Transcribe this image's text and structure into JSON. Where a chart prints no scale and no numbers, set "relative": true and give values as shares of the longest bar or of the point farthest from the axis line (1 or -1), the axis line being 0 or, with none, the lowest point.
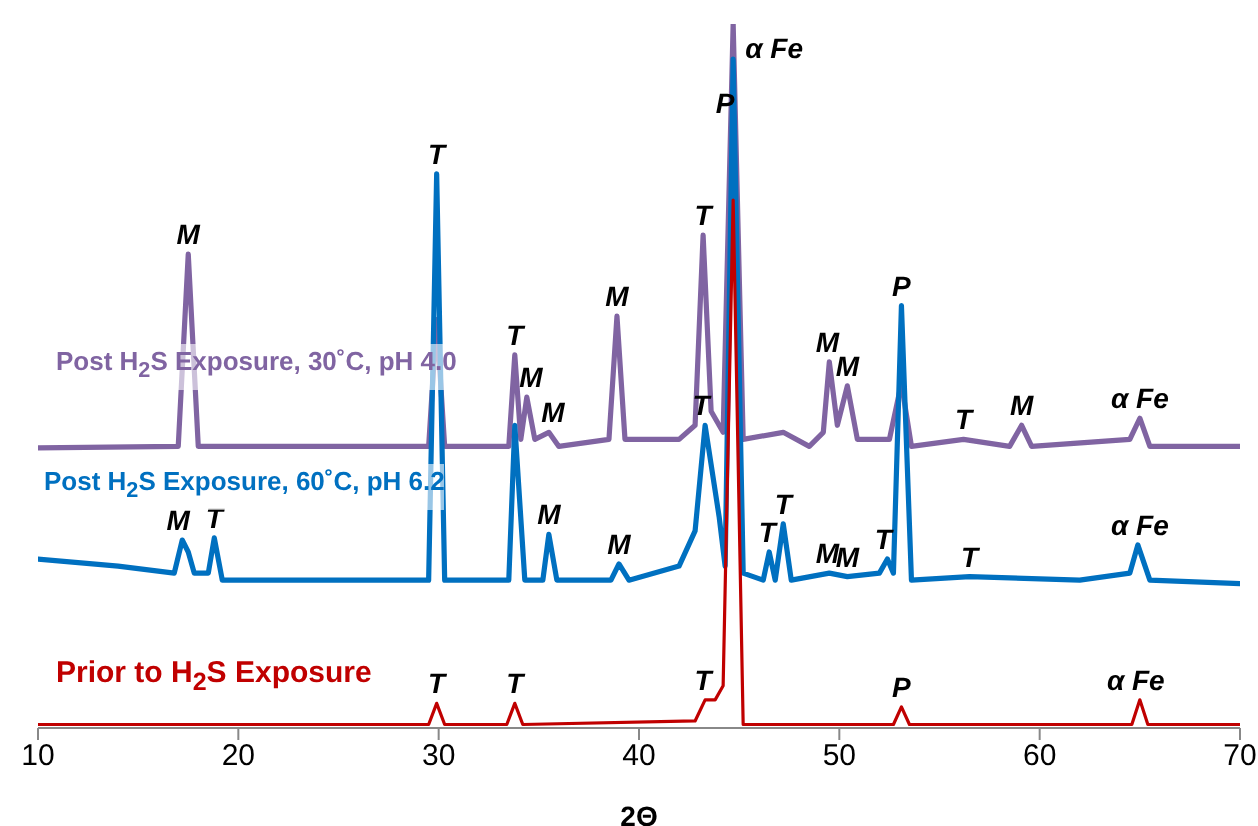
{
  "chart_data": {
    "type": "line",
    "relative": true,
    "xlabel": "2Θ",
    "xlim": [
      10,
      70
    ],
    "xticks": [
      10,
      20,
      30,
      40,
      50,
      60,
      70
    ],
    "marker": "none",
    "legend": false,
    "series": [
      {
        "name": "Post H$_{2}$S Exposure, 30˚C, pH 4.0",
        "color": "#8064a2",
        "x": [
          10,
          17.0,
          17.5,
          18.0,
          29.5,
          29.9,
          30.3,
          33.5,
          33.8,
          34.1,
          34.4,
          34.8,
          35.5,
          36.0,
          38.5,
          38.9,
          39.3,
          42.0,
          42.8,
          43.2,
          43.6,
          44.2,
          44.7,
          45.2,
          47.2,
          48.5,
          49.2,
          49.5,
          49.9,
          50.4,
          50.9,
          52.5,
          53.1,
          53.6,
          56.2,
          58.5,
          59.1,
          59.6,
          64.5,
          65.0,
          65.5,
          70
        ],
        "values": [
          0.398,
          0.4,
          0.673,
          0.4,
          0.4,
          0.58,
          0.4,
          0.4,
          0.53,
          0.41,
          0.47,
          0.41,
          0.42,
          0.4,
          0.41,
          0.585,
          0.41,
          0.41,
          0.43,
          0.7,
          0.45,
          0.42,
          1.0,
          0.41,
          0.42,
          0.4,
          0.42,
          0.52,
          0.43,
          0.486,
          0.41,
          0.41,
          0.49,
          0.4,
          0.41,
          0.4,
          0.43,
          0.4,
          0.41,
          0.44,
          0.4,
          0.4
        ]
      },
      {
        "name": "Post H$_{2}$S Exposure, 60˚C, pH 6.2",
        "color": "#0070c0",
        "x": [
          10,
          14,
          16.8,
          17.2,
          17.5,
          17.8,
          18.5,
          18.8,
          19.2,
          29.5,
          29.9,
          30.3,
          33.5,
          33.8,
          34.3,
          35.2,
          35.5,
          35.9,
          38.6,
          39.0,
          39.5,
          42.0,
          42.8,
          43.3,
          44.0,
          44.3,
          44.7,
          45.2,
          46.2,
          46.5,
          46.8,
          47.2,
          47.6,
          49.5,
          50.4,
          52.0,
          52.4,
          52.7,
          53.1,
          53.6,
          56.5,
          62,
          64.5,
          64.9,
          65.5,
          70
        ],
        "values": [
          0.24,
          0.23,
          0.22,
          0.267,
          0.25,
          0.22,
          0.22,
          0.27,
          0.21,
          0.21,
          0.787,
          0.21,
          0.21,
          0.43,
          0.21,
          0.21,
          0.275,
          0.21,
          0.21,
          0.233,
          0.21,
          0.23,
          0.28,
          0.43,
          0.3,
          0.23,
          0.95,
          0.22,
          0.21,
          0.25,
          0.21,
          0.29,
          0.21,
          0.22,
          0.215,
          0.22,
          0.24,
          0.22,
          0.6,
          0.21,
          0.215,
          0.21,
          0.22,
          0.26,
          0.21,
          0.205
        ]
      },
      {
        "name": "Prior to H$_{2}$S Exposure",
        "color": "#c00000",
        "x": [
          10,
          29.5,
          29.9,
          30.3,
          33.4,
          33.8,
          34.2,
          42.8,
          43.3,
          43.8,
          44.2,
          44.7,
          45.2,
          52.7,
          53.1,
          53.5,
          64.6,
          65.0,
          65.4,
          70
        ],
        "values": [
          0.005,
          0.005,
          0.035,
          0.005,
          0.005,
          0.035,
          0.005,
          0.01,
          0.04,
          0.04,
          0.06,
          0.75,
          0.005,
          0.005,
          0.03,
          0.005,
          0.005,
          0.04,
          0.005,
          0.005
        ]
      }
    ],
    "annotations": [
      {
        "text": "M",
        "x": 17.5,
        "y": 0.673
      },
      {
        "text": "T",
        "x": 29.9,
        "y": 0.787
      },
      {
        "text": "T",
        "x": 33.8,
        "y": 0.53
      },
      {
        "text": "M",
        "x": 34.6,
        "y": 0.47
      },
      {
        "text": "M",
        "x": 35.7,
        "y": 0.42
      },
      {
        "text": "M",
        "x": 38.9,
        "y": 0.585
      },
      {
        "text": "T",
        "x": 43.2,
        "y": 0.7
      },
      {
        "text": "P",
        "x": 44.3,
        "y": 0.86
      },
      {
        "text": "α Fe",
        "x": 44.7,
        "y": 1.0
      },
      {
        "text": "M",
        "x": 49.4,
        "y": 0.52
      },
      {
        "text": "M",
        "x": 50.4,
        "y": 0.486
      },
      {
        "text": "P",
        "x": 53.1,
        "y": 0.6
      },
      {
        "text": "T",
        "x": 56.2,
        "y": 0.41
      },
      {
        "text": "M",
        "x": 59.1,
        "y": 0.43
      },
      {
        "text": "α Fe",
        "x": 65.0,
        "y": 0.44
      },
      {
        "text": "M",
        "x": 17.0,
        "y": 0.267
      },
      {
        "text": "T",
        "x": 18.8,
        "y": 0.27
      },
      {
        "text": "M",
        "x": 35.5,
        "y": 0.275
      },
      {
        "text": "M",
        "x": 39.0,
        "y": 0.233
      },
      {
        "text": "T",
        "x": 43.1,
        "y": 0.43
      },
      {
        "text": "T",
        "x": 46.4,
        "y": 0.25
      },
      {
        "text": "T",
        "x": 47.2,
        "y": 0.29
      },
      {
        "text": "M",
        "x": 49.4,
        "y": 0.22
      },
      {
        "text": "M",
        "x": 50.4,
        "y": 0.215
      },
      {
        "text": "T",
        "x": 52.2,
        "y": 0.24
      },
      {
        "text": "T",
        "x": 56.5,
        "y": 0.215
      },
      {
        "text": "α Fe",
        "x": 65.0,
        "y": 0.26
      },
      {
        "text": "T",
        "x": 29.9,
        "y": 0.035
      },
      {
        "text": "T",
        "x": 33.8,
        "y": 0.035
      },
      {
        "text": "T",
        "x": 43.2,
        "y": 0.04
      },
      {
        "text": "P",
        "x": 53.1,
        "y": 0.03
      },
      {
        "text": "α Fe",
        "x": 64.8,
        "y": 0.04
      }
    ]
  }
}
